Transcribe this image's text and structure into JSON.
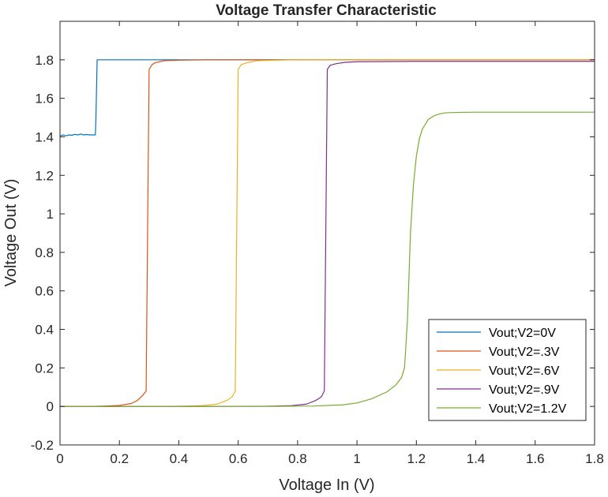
{
  "chart_data": {
    "type": "line",
    "title": "Voltage Transfer Characteristic",
    "xlabel": "Voltage In (V)",
    "ylabel": "Voltage Out (V)",
    "xlim": [
      0,
      1.8
    ],
    "ylim": [
      -0.2,
      2.0
    ],
    "xticks": [
      "0",
      "0.2",
      "0.4",
      "0.6",
      "0.8",
      "1",
      "1.2",
      "1.4",
      "1.6",
      "1.8"
    ],
    "yticks": [
      "-0.2",
      "0",
      "0.2",
      "0.4",
      "0.6",
      "0.8",
      "1",
      "1.2",
      "1.4",
      "1.6",
      "1.8"
    ],
    "grid": false,
    "legend_position": "bottom-right",
    "series": [
      {
        "name": "Vout;V2=0V",
        "color": "#0072BD",
        "x": [
          0,
          0.01,
          0.02,
          0.03,
          0.04,
          0.05,
          0.06,
          0.07,
          0.08,
          0.09,
          0.1,
          0.11,
          0.119,
          0.121,
          0.125,
          0.13,
          0.2,
          0.4,
          1.8
        ],
        "y": [
          1.405,
          1.41,
          1.405,
          1.41,
          1.408,
          1.413,
          1.41,
          1.415,
          1.41,
          1.412,
          1.41,
          1.41,
          1.41,
          1.5,
          1.8,
          1.8,
          1.8,
          1.8,
          1.8
        ]
      },
      {
        "name": "Vout;V2=.3V",
        "color": "#D95319",
        "x": [
          0,
          0.1,
          0.15,
          0.2,
          0.24,
          0.26,
          0.28,
          0.29,
          0.3,
          0.31,
          0.32,
          0.35,
          0.4,
          0.5,
          1.8
        ],
        "y": [
          0,
          0,
          0.002,
          0.005,
          0.015,
          0.03,
          0.06,
          0.08,
          1.75,
          1.775,
          1.785,
          1.795,
          1.798,
          1.8,
          1.8
        ]
      },
      {
        "name": "Vout;V2=.6V",
        "color": "#EDB120",
        "x": [
          0,
          0.3,
          0.4,
          0.48,
          0.53,
          0.56,
          0.58,
          0.59,
          0.6,
          0.61,
          0.63,
          0.66,
          0.7,
          0.8,
          1.8
        ],
        "y": [
          0,
          0,
          0.001,
          0.004,
          0.012,
          0.03,
          0.05,
          0.08,
          1.75,
          1.775,
          1.785,
          1.795,
          1.797,
          1.8,
          1.8
        ]
      },
      {
        "name": "Vout;V2=.9V",
        "color": "#7E2F8E",
        "x": [
          0,
          0.5,
          0.7,
          0.78,
          0.83,
          0.86,
          0.88,
          0.89,
          0.9,
          0.91,
          0.93,
          0.96,
          1.0,
          1.2,
          1.8
        ],
        "y": [
          0,
          0,
          0.001,
          0.004,
          0.012,
          0.03,
          0.05,
          0.08,
          1.75,
          1.772,
          1.78,
          1.787,
          1.79,
          1.792,
          1.792
        ]
      },
      {
        "name": "Vout;V2=1.2V",
        "color": "#77AC30",
        "x": [
          0,
          0.7,
          0.85,
          0.95,
          1.0,
          1.05,
          1.1,
          1.13,
          1.15,
          1.16,
          1.17,
          1.18,
          1.19,
          1.2,
          1.21,
          1.22,
          1.24,
          1.26,
          1.28,
          1.3,
          1.35,
          1.4,
          1.5,
          1.8
        ],
        "y": [
          0,
          0,
          0.002,
          0.008,
          0.018,
          0.04,
          0.075,
          0.11,
          0.15,
          0.2,
          0.45,
          0.9,
          1.15,
          1.3,
          1.39,
          1.44,
          1.49,
          1.51,
          1.52,
          1.525,
          1.527,
          1.528,
          1.528,
          1.528
        ]
      }
    ]
  }
}
